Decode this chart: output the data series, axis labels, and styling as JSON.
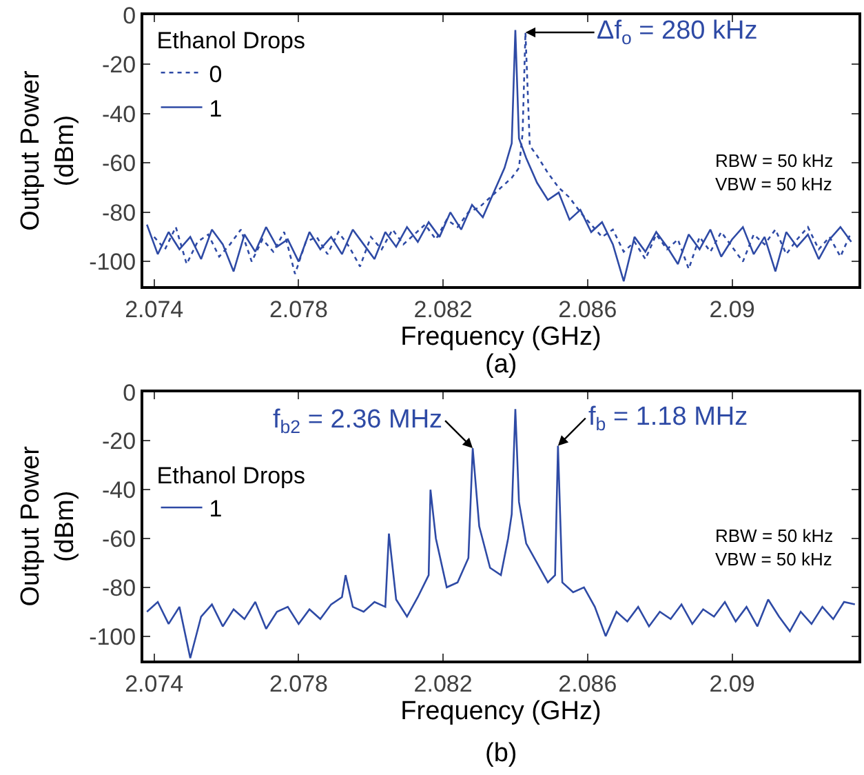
{
  "chart_data": [
    {
      "type": "line",
      "xlabel": "Frequency (GHz)",
      "ylabel": "Output Power\n(dBm)",
      "legend_title": "Ethanol Drops",
      "legend": "top left",
      "marker": "none",
      "xlim": [
        2.0737,
        2.0935
      ],
      "xticks": [
        2.074,
        2.078,
        2.082,
        2.086,
        2.09
      ],
      "ylim": [
        -110,
        0
      ],
      "yticks": [
        -100,
        -80,
        -60,
        -40,
        -20,
        0
      ],
      "series": [
        {
          "name": "0",
          "color": "#2e4aa5",
          "line_style": "dotted",
          "x": [
            2.074,
            2.0743,
            2.0746,
            2.0749,
            2.0752,
            2.0755,
            2.0758,
            2.0761,
            2.0764,
            2.0767,
            2.077,
            2.0773,
            2.0776,
            2.0779,
            2.0782,
            2.0785,
            2.0788,
            2.0791,
            2.0794,
            2.0797,
            2.08,
            2.0803,
            2.0806,
            2.0809,
            2.0812,
            2.0815,
            2.0818,
            2.0821,
            2.0824,
            2.0827,
            2.083,
            2.0833,
            2.0836,
            2.0839,
            2.0841,
            2.0842,
            2.08428,
            2.0844,
            2.0846,
            2.0849,
            2.0852,
            2.0855,
            2.0858,
            2.0861,
            2.0864,
            2.0867,
            2.087,
            2.0873,
            2.0876,
            2.0879,
            2.0882,
            2.0885,
            2.0888,
            2.0891,
            2.0894,
            2.0897,
            2.09,
            2.0903,
            2.0906,
            2.0909,
            2.0912,
            2.0915,
            2.0918,
            2.0921,
            2.0924,
            2.0927,
            2.093,
            2.0933
          ],
          "values": [
            -90,
            -95,
            -86,
            -101,
            -92,
            -89,
            -98,
            -93,
            -87,
            -100,
            -91,
            -96,
            -88,
            -105,
            -92,
            -90,
            -97,
            -88,
            -94,
            -102,
            -90,
            -95,
            -87,
            -93,
            -89,
            -85,
            -91,
            -83,
            -86,
            -80,
            -78,
            -74,
            -70,
            -66,
            -62,
            -48,
            -7,
            -53,
            -57,
            -64,
            -70,
            -74,
            -80,
            -85,
            -90,
            -87,
            -96,
            -92,
            -99,
            -89,
            -95,
            -91,
            -103,
            -90,
            -96,
            -88,
            -94,
            -100,
            -89,
            -93,
            -87,
            -97,
            -91,
            -86,
            -95,
            -90,
            -98,
            -88
          ]
        },
        {
          "name": "1",
          "color": "#2e4aa5",
          "line_style": "solid",
          "x": [
            2.0738,
            2.0741,
            2.0744,
            2.0747,
            2.075,
            2.0753,
            2.0756,
            2.0759,
            2.0762,
            2.0765,
            2.0768,
            2.0771,
            2.0774,
            2.0777,
            2.078,
            2.0783,
            2.0786,
            2.0789,
            2.0792,
            2.0795,
            2.0798,
            2.0801,
            2.0804,
            2.0807,
            2.081,
            2.0813,
            2.0816,
            2.0819,
            2.0822,
            2.0825,
            2.0828,
            2.0831,
            2.0834,
            2.0837,
            2.0839,
            2.084,
            2.0841,
            2.0843,
            2.0846,
            2.0849,
            2.0852,
            2.0855,
            2.0858,
            2.0861,
            2.0864,
            2.0867,
            2.087,
            2.0873,
            2.0876,
            2.0879,
            2.0882,
            2.0885,
            2.0888,
            2.0891,
            2.0894,
            2.0897,
            2.09,
            2.0903,
            2.0906,
            2.0909,
            2.0912,
            2.0915,
            2.0918,
            2.0921,
            2.0924,
            2.0927,
            2.093,
            2.0933
          ],
          "values": [
            -85,
            -97,
            -88,
            -95,
            -90,
            -99,
            -87,
            -93,
            -104,
            -89,
            -96,
            -86,
            -94,
            -91,
            -100,
            -88,
            -95,
            -90,
            -97,
            -87,
            -93,
            -99,
            -88,
            -94,
            -86,
            -92,
            -84,
            -90,
            -80,
            -87,
            -77,
            -82,
            -72,
            -62,
            -52,
            -6,
            -50,
            -58,
            -68,
            -75,
            -72,
            -83,
            -79,
            -88,
            -84,
            -93,
            -108,
            -90,
            -96,
            -88,
            -94,
            -101,
            -89,
            -95,
            -87,
            -98,
            -91,
            -86,
            -97,
            -90,
            -104,
            -88,
            -94,
            -89,
            -99,
            -91,
            -86,
            -92
          ]
        }
      ],
      "annotations": [
        "RBW = 50 kHz\nVBW = 50 kHz",
        "(a)",
        {
          "text": "Δf$_{o}$ = 280 kHz",
          "x": 2.08428,
          "y": -7
        }
      ]
    },
    {
      "type": "line",
      "xlabel": "Frequency (GHz)",
      "ylabel": "Output Power\n(dBm)",
      "legend_title": "Ethanol Drops",
      "legend": "top left",
      "marker": "none",
      "xlim": [
        2.0737,
        2.0935
      ],
      "xticks": [
        2.074,
        2.078,
        2.082,
        2.086,
        2.09
      ],
      "ylim": [
        -110,
        0
      ],
      "yticks": [
        -100,
        -80,
        -60,
        -40,
        -20,
        0
      ],
      "series": [
        {
          "name": "1",
          "color": "#2e4aa5",
          "line_style": "solid",
          "x": [
            2.0738,
            2.0741,
            2.0744,
            2.0747,
            2.075,
            2.0753,
            2.0756,
            2.0759,
            2.0762,
            2.0765,
            2.0768,
            2.0771,
            2.0774,
            2.0777,
            2.078,
            2.0783,
            2.0786,
            2.0789,
            2.0792,
            2.0793,
            2.0795,
            2.0798,
            2.0801,
            2.0804,
            2.0805,
            2.0807,
            2.081,
            2.0813,
            2.0816,
            2.08165,
            2.0818,
            2.0821,
            2.0824,
            2.0827,
            2.08282,
            2.083,
            2.0833,
            2.0836,
            2.0838,
            2.0839,
            2.084,
            2.0841,
            2.0843,
            2.0846,
            2.0849,
            2.0851,
            2.08518,
            2.0853,
            2.0856,
            2.0859,
            2.0862,
            2.0865,
            2.0868,
            2.0871,
            2.0874,
            2.0877,
            2.088,
            2.0883,
            2.0886,
            2.0889,
            2.0892,
            2.0895,
            2.0898,
            2.0901,
            2.0904,
            2.0907,
            2.091,
            2.0913,
            2.0916,
            2.0919,
            2.0922,
            2.0925,
            2.0928,
            2.0931,
            2.0934
          ],
          "values": [
            -90,
            -86,
            -95,
            -88,
            -109,
            -92,
            -87,
            -96,
            -89,
            -93,
            -86,
            -97,
            -90,
            -88,
            -95,
            -89,
            -93,
            -87,
            -84,
            -75,
            -88,
            -90,
            -86,
            -88,
            -58,
            -85,
            -92,
            -84,
            -75,
            -40,
            -60,
            -80,
            -78,
            -68,
            -23,
            -55,
            -72,
            -75,
            -60,
            -50,
            -7,
            -45,
            -62,
            -70,
            -78,
            -75,
            -22,
            -78,
            -82,
            -80,
            -88,
            -100,
            -90,
            -94,
            -88,
            -96,
            -90,
            -93,
            -87,
            -95,
            -89,
            -92,
            -86,
            -94,
            -88,
            -96,
            -85,
            -92,
            -98,
            -90,
            -95,
            -88,
            -93,
            -86,
            -87
          ]
        }
      ],
      "annotations": [
        "RBW = 50 kHz\nVBW = 50 kHz",
        "(b)",
        {
          "text": "f$_{b2}$ = 2.36 MHz",
          "x": 2.08282,
          "y": -23
        },
        {
          "text": "f$_{b}$ = 1.18 MHz",
          "x": 2.08518,
          "y": -22
        }
      ]
    }
  ]
}
